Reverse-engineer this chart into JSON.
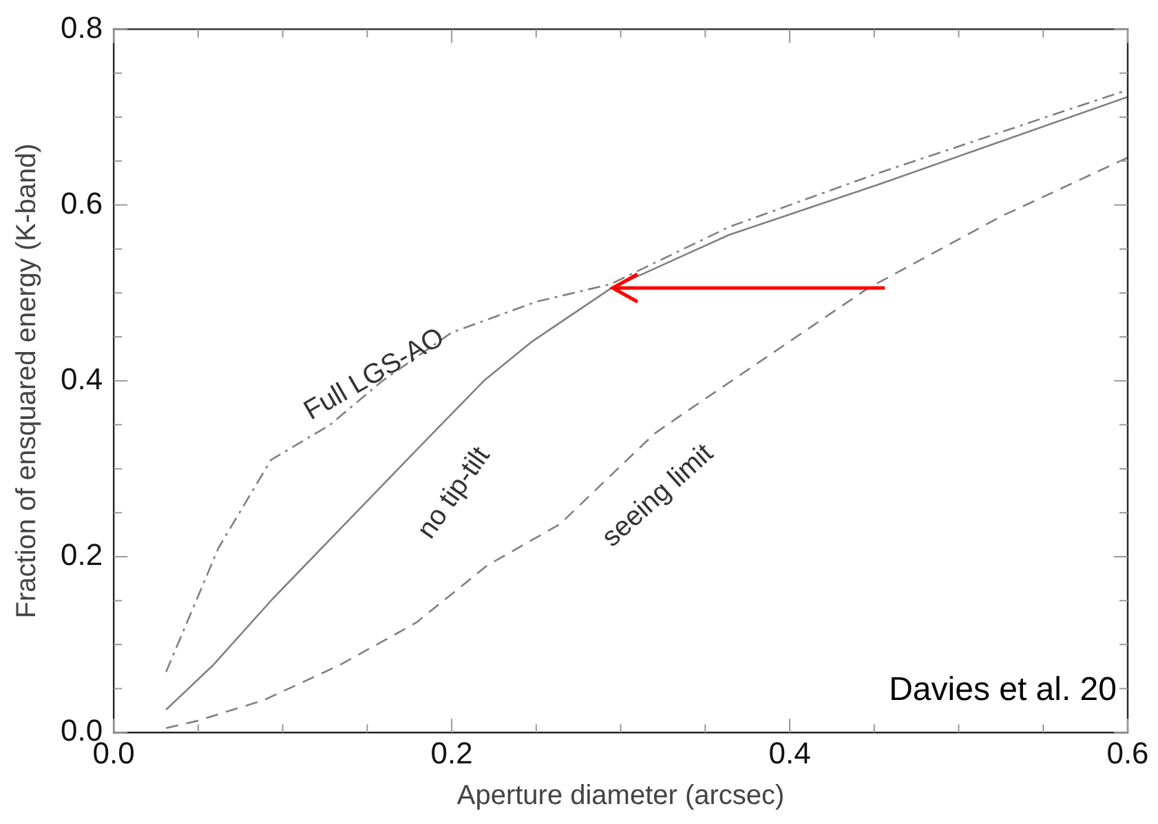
{
  "chart_data": {
    "type": "line",
    "xlabel": "Aperture diameter (arcsec)",
    "ylabel": "Fraction of ensquared energy (K-band)",
    "xlim": [
      0,
      0.6
    ],
    "ylim": [
      0,
      0.8
    ],
    "xticks": [
      {
        "value": 0,
        "label": "0.0"
      },
      {
        "value": 0.05,
        "label": null
      },
      {
        "value": 0.1,
        "label": null
      },
      {
        "value": 0.15,
        "label": null
      },
      {
        "value": 0.2,
        "label": "0.2"
      },
      {
        "value": 0.25,
        "label": null
      },
      {
        "value": 0.3,
        "label": null
      },
      {
        "value": 0.35,
        "label": null
      },
      {
        "value": 0.4,
        "label": "0.4"
      },
      {
        "value": 0.45,
        "label": null
      },
      {
        "value": 0.5,
        "label": null
      },
      {
        "value": 0.55,
        "label": null
      },
      {
        "value": 0.6,
        "label": "0.6"
      }
    ],
    "yticks": [
      {
        "value": 0,
        "label": "0.0"
      },
      {
        "value": 0.05,
        "label": null
      },
      {
        "value": 0.1,
        "label": null
      },
      {
        "value": 0.15,
        "label": null
      },
      {
        "value": 0.2,
        "label": "0.2"
      },
      {
        "value": 0.25,
        "label": null
      },
      {
        "value": 0.3,
        "label": null
      },
      {
        "value": 0.35,
        "label": null
      },
      {
        "value": 0.4,
        "label": "0.4"
      },
      {
        "value": 0.45,
        "label": null
      },
      {
        "value": 0.5,
        "label": null
      },
      {
        "value": 0.55,
        "label": null
      },
      {
        "value": 0.6,
        "label": "0.6"
      },
      {
        "value": 0.65,
        "label": null
      },
      {
        "value": 0.7,
        "label": null
      },
      {
        "value": 0.75,
        "label": null
      },
      {
        "value": 0.8,
        "label": "0.8"
      }
    ],
    "grid": false,
    "legend": false,
    "marker": "none",
    "series": [
      {
        "name": "Full LGS-AO",
        "color": "#808080",
        "line_style": "dashdot",
        "x": [
          0.031,
          0.062,
          0.093,
          0.128,
          0.159,
          0.2,
          0.25,
          0.294,
          0.364,
          0.452,
          0.6
        ],
        "values": [
          0.069,
          0.21,
          0.31,
          0.35,
          0.4,
          0.455,
          0.49,
          0.51,
          0.575,
          0.636,
          0.731
        ]
      },
      {
        "name": "no tip-tilt",
        "color": "#808080",
        "line_style": "solid",
        "x": [
          0.031,
          0.059,
          0.094,
          0.185,
          0.219,
          0.247,
          0.294,
          0.364,
          0.452,
          0.6
        ],
        "values": [
          0.026,
          0.077,
          0.152,
          0.333,
          0.4,
          0.444,
          0.505,
          0.566,
          0.623,
          0.723
        ]
      },
      {
        "name": "seeing limit",
        "color": "#808080",
        "line_style": "dashed",
        "x": [
          0.031,
          0.049,
          0.089,
          0.134,
          0.179,
          0.221,
          0.264,
          0.32,
          0.335,
          0.446,
          0.525,
          0.6
        ],
        "values": [
          0.005,
          0.013,
          0.037,
          0.077,
          0.125,
          0.19,
          0.237,
          0.34,
          0.36,
          0.505,
          0.587,
          0.654
        ]
      }
    ],
    "annotations": [
      "Davies et al. 20"
    ]
  }
}
